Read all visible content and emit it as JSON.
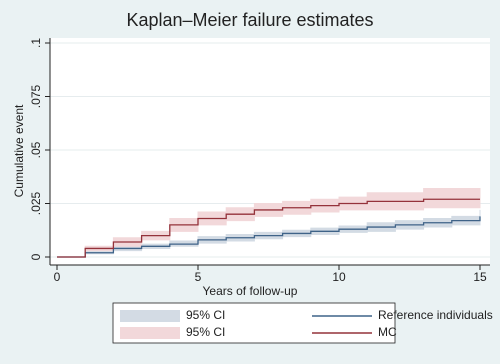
{
  "chart_data": {
    "type": "step",
    "title": "Kaplan–Meier failure estimates",
    "x_label": "Years of follow-up",
    "y_label": "Cumulative event",
    "x": [
      0,
      1,
      2,
      3,
      4,
      5,
      6,
      7,
      8,
      9,
      10,
      11,
      12,
      13,
      14,
      15
    ],
    "xlim": [
      0,
      15
    ],
    "xticks": [
      0,
      5,
      10,
      15
    ],
    "ylim": [
      0,
      0.1
    ],
    "yticks": [
      0,
      {
        "value": 0.025,
        "label": ".025"
      },
      {
        "value": 0.05,
        "label": ".05"
      },
      {
        "value": 0.075,
        "label": ".075"
      },
      {
        "value": 0.1,
        "label": ".1"
      }
    ],
    "grid": true,
    "series": [
      {
        "name": "95% CI",
        "kind": "band",
        "color": "#d3dbe4",
        "lower": [
          0,
          0.0015,
          0.003,
          0.004,
          0.005,
          0.0065,
          0.0075,
          0.0085,
          0.0095,
          0.0105,
          0.0115,
          0.012,
          0.013,
          0.014,
          0.015,
          0.016
        ],
        "upper": [
          0,
          0.0025,
          0.005,
          0.006,
          0.0075,
          0.0095,
          0.0105,
          0.0115,
          0.0125,
          0.0135,
          0.0145,
          0.016,
          0.017,
          0.018,
          0.019,
          0.022
        ]
      },
      {
        "name": "95% CI",
        "kind": "band",
        "color": "#f2d8da",
        "lower": [
          0,
          0.003,
          0.005,
          0.008,
          0.012,
          0.015,
          0.017,
          0.019,
          0.02,
          0.021,
          0.022,
          0.022,
          0.022,
          0.023,
          0.023,
          0.023
        ],
        "upper": [
          0,
          0.005,
          0.009,
          0.012,
          0.018,
          0.021,
          0.023,
          0.025,
          0.026,
          0.027,
          0.028,
          0.03,
          0.03,
          0.032,
          0.032,
          0.032
        ]
      },
      {
        "name": "Reference individuals",
        "kind": "line",
        "color": "#3f6388",
        "values": [
          0,
          0.002,
          0.004,
          0.005,
          0.006,
          0.008,
          0.009,
          0.01,
          0.011,
          0.012,
          0.013,
          0.014,
          0.015,
          0.016,
          0.017,
          0.019
        ]
      },
      {
        "name": "MC",
        "kind": "line",
        "color": "#94323a",
        "values": [
          0,
          0.004,
          0.007,
          0.01,
          0.015,
          0.018,
          0.02,
          0.022,
          0.023,
          0.024,
          0.025,
          0.026,
          0.026,
          0.027,
          0.027,
          0.027
        ]
      }
    ]
  }
}
